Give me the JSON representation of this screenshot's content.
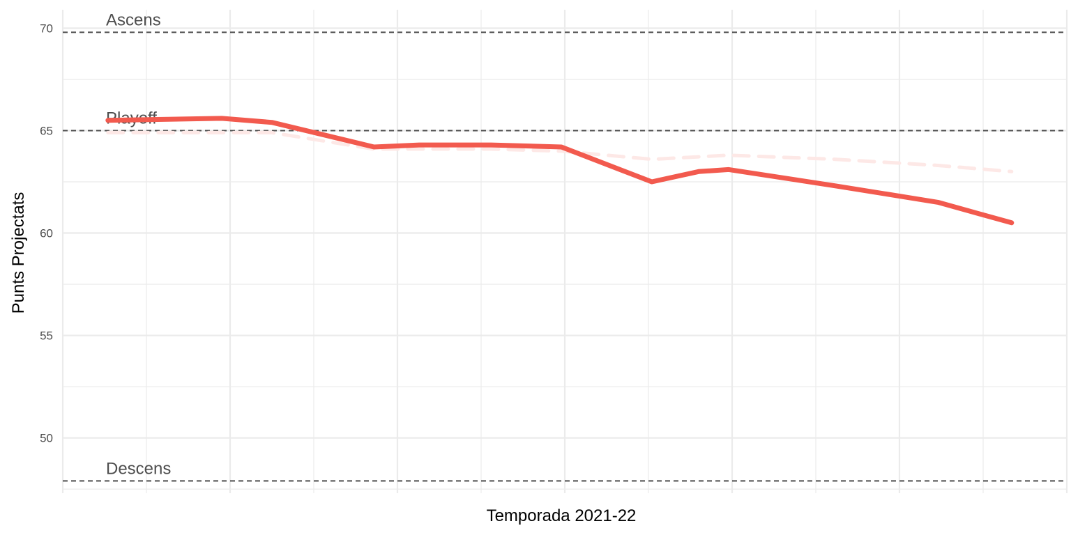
{
  "chart_data": {
    "type": "line",
    "xlabel": "Temporada 2021-22",
    "ylabel": "Punts Projectats",
    "ylim": [
      47.3,
      70.9
    ],
    "yticks": [
      50,
      55,
      60,
      65,
      70
    ],
    "xlim": [
      0,
      6
    ],
    "grid": true,
    "legend": "none",
    "colors": {
      "main": "#f25a4e",
      "faded": "#fde8e6",
      "reference": "#4d4d4d",
      "grid": "#ebebeb"
    },
    "reference_lines": [
      {
        "label": "Ascens",
        "value": 69.8
      },
      {
        "label": "Playoff",
        "value": 65.0
      },
      {
        "label": "Descens",
        "value": 47.9
      }
    ],
    "series": [
      {
        "style": "solid",
        "x": [
          0.27,
          0.95,
          1.25,
          1.86,
          2.13,
          2.56,
          2.98,
          3.52,
          3.8,
          3.98,
          4.62,
          5.23,
          5.67
        ],
        "values": [
          65.5,
          65.6,
          65.4,
          64.2,
          64.3,
          64.3,
          64.2,
          62.5,
          63.0,
          63.1,
          62.3,
          61.5,
          60.5
        ]
      },
      {
        "style": "dashed",
        "x": [
          0.27,
          1.25,
          1.86,
          2.56,
          2.98,
          3.52,
          3.98,
          4.62,
          5.23,
          5.67
        ],
        "values": [
          64.9,
          64.9,
          64.1,
          64.1,
          64.0,
          63.6,
          63.8,
          63.6,
          63.3,
          63.0
        ]
      }
    ]
  }
}
